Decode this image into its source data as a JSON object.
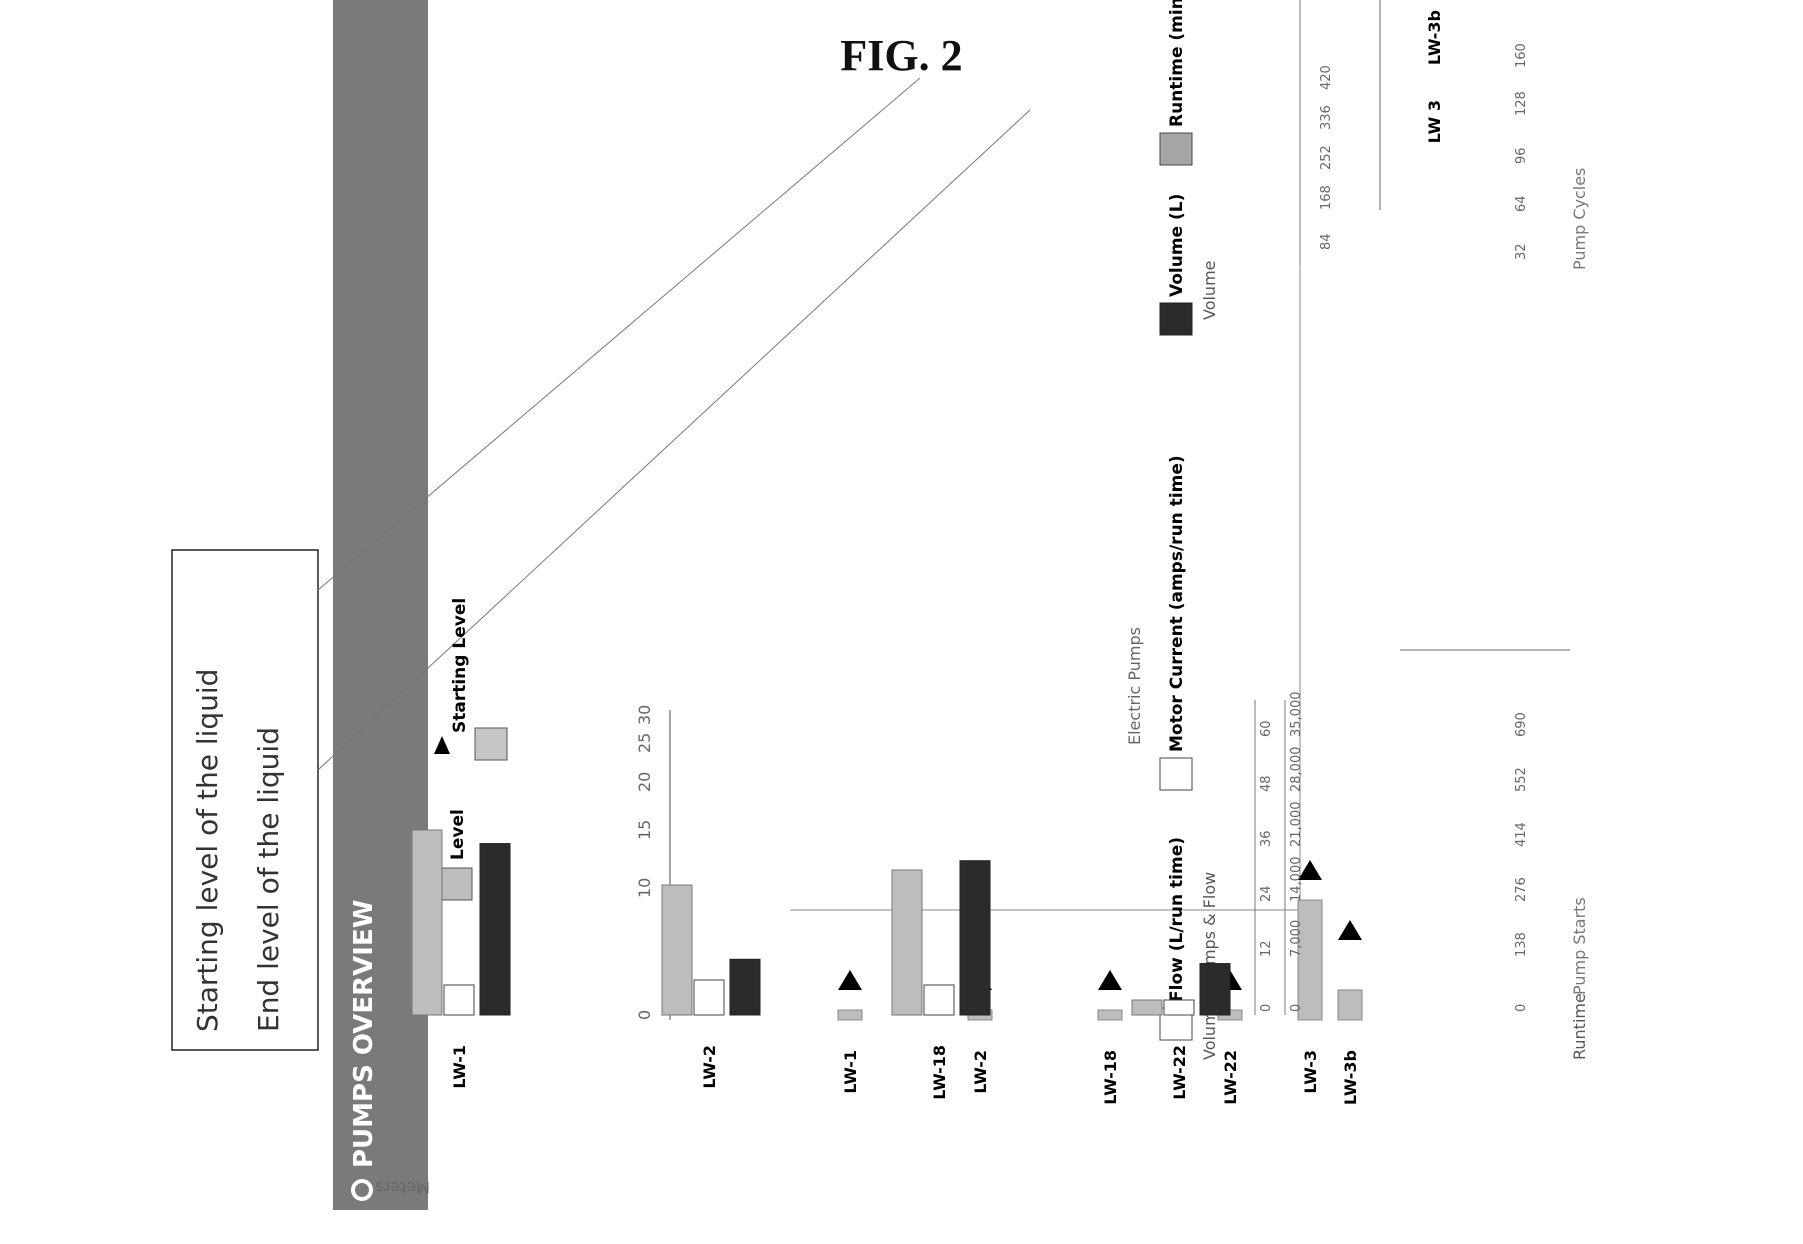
{
  "figure_title": "FIG. 2",
  "callout": {
    "line1": "Starting level of the liquid",
    "line2": "End level of the liquid"
  },
  "banner": {
    "title": "PUMPS OVERVIEW",
    "icon": "gear-icon",
    "color": "#7a7a7a"
  },
  "colors": {
    "level": "#bdbdbd",
    "marker": "#000000",
    "flow": "#ffffff",
    "current": "#bdbdbd",
    "volume": "#2b2b2b",
    "runtime": "#a6a6a6"
  },
  "chart_data": [
    {
      "type": "bar",
      "ylabel": "Meters",
      "ylim": [
        0,
        30
      ],
      "yticks": [
        "0",
        "10",
        "15",
        "20",
        "25",
        "30"
      ],
      "xlabel": "Electric Pumps",
      "categories": [
        "LW-1",
        "LW-2",
        "LW-18",
        "LW-22",
        "LW-3",
        "LW-3b"
      ],
      "legend": [
        "Level",
        "Starting Level"
      ],
      "series": [
        {
          "name": "Level",
          "values": [
            1,
            1,
            1,
            1,
            12,
            3
          ]
        },
        {
          "name": "Starting Level",
          "values": [
            3,
            3,
            3,
            3,
            14,
            8
          ]
        }
      ]
    },
    {
      "type": "bar",
      "left_axis": {
        "label": "Volume",
        "ticks": [
          "0",
          "7,000",
          "14,000",
          "21,000",
          "28,000",
          "35,000"
        ]
      },
      "left_axis2": {
        "label": "Amps & Flow",
        "ticks": [
          "0",
          "12",
          "24",
          "36",
          "48",
          "60"
        ]
      },
      "right_axis": {
        "label": "Volume",
        "ticks": [
          "84",
          "168",
          "252",
          "336",
          "420"
        ]
      },
      "categories": [
        "LW-1",
        "LW-2",
        "LW-18",
        "LW-22",
        "LW-3",
        "LW-3b"
      ],
      "legend": [
        "Flow (L/run time)",
        "Motor Current (amps/run time)",
        "Volume (L)",
        "Runtime (min)"
      ],
      "series": [
        {
          "name": "Flow (L/run time)",
          "values": [
            6,
            7,
            6,
            3,
            0,
            0
          ]
        },
        {
          "name": "Motor Current (amps/run time)",
          "values": [
            37,
            26,
            29,
            3,
            0,
            0
          ]
        },
        {
          "name": "Volume (L)",
          "values": [
            20000,
            6500,
            18000,
            6000,
            0,
            0
          ]
        },
        {
          "name": "Runtime (min)",
          "values": [
            0,
            0,
            0,
            0,
            120,
            60
          ]
        }
      ]
    },
    {
      "type": "bar",
      "left_axis": {
        "label": "Runtime",
        "ticks": [
          "0",
          "138",
          "276",
          "414",
          "552",
          "690"
        ]
      },
      "xlabel": "Pump Starts",
      "right_axis": {
        "label": "Pump Cycles",
        "ticks": [
          "32",
          "64",
          "96",
          "128",
          "160"
        ]
      },
      "categories": [
        "LW 3",
        "LW-3b"
      ]
    }
  ]
}
